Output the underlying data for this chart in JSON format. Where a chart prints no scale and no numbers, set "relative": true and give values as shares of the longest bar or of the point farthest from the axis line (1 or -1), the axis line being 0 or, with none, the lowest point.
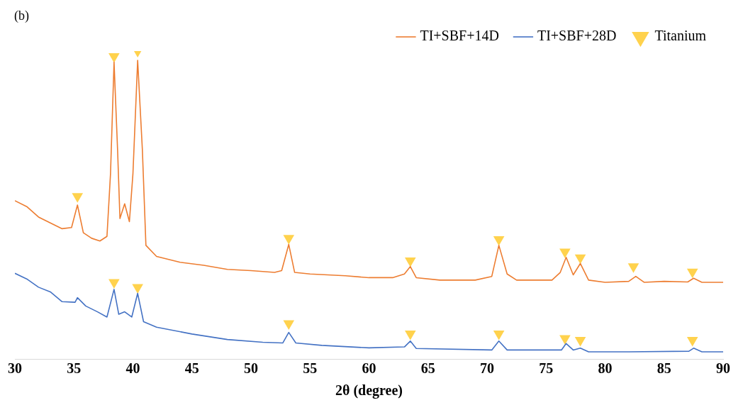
{
  "chart_data": {
    "type": "line",
    "relative": true,
    "xlabel": "2θ (degree)",
    "annotations": [
      "(b)"
    ],
    "xlim": [
      30,
      90
    ],
    "xticks": [
      30,
      35,
      40,
      45,
      50,
      55,
      60,
      65,
      70,
      75,
      80,
      85,
      90
    ],
    "legend": "top right",
    "grid": false,
    "line_style": "solid",
    "series": [
      {
        "name": "TI+SBF+14D",
        "color": "#ed7d31",
        "marker": "none",
        "x": [
          30,
          31,
          32,
          33,
          34,
          34.8,
          35.3,
          35.8,
          36.5,
          37.2,
          37.8,
          38.1,
          38.4,
          38.7,
          38.9,
          39.3,
          39.7,
          40.0,
          40.4,
          40.8,
          41.1,
          42,
          44,
          46,
          48,
          50,
          52,
          52.6,
          53.2,
          53.7,
          55,
          58,
          60,
          62,
          63,
          63.5,
          64,
          66,
          69,
          70.4,
          71,
          71.7,
          72.5,
          75.5,
          76.2,
          76.7,
          77.3,
          77.9,
          78.6,
          80,
          82,
          82.6,
          83.3,
          85,
          87,
          87.5,
          88.2,
          90
        ],
        "values": [
          0.514,
          0.495,
          0.461,
          0.442,
          0.423,
          0.427,
          0.5,
          0.41,
          0.392,
          0.383,
          0.398,
          0.601,
          0.964,
          0.679,
          0.456,
          0.504,
          0.446,
          0.601,
          0.97,
          0.679,
          0.369,
          0.333,
          0.314,
          0.304,
          0.291,
          0.287,
          0.281,
          0.287,
          0.372,
          0.281,
          0.276,
          0.27,
          0.264,
          0.264,
          0.276,
          0.3,
          0.264,
          0.256,
          0.256,
          0.268,
          0.369,
          0.276,
          0.256,
          0.256,
          0.281,
          0.33,
          0.273,
          0.31,
          0.256,
          0.249,
          0.252,
          0.268,
          0.249,
          0.252,
          0.25,
          0.262,
          0.249,
          0.249
        ]
      },
      {
        "name": "TI+SBF+28D",
        "color": "#4472c4",
        "marker": "none",
        "x": [
          30,
          31,
          32,
          33,
          34,
          35.1,
          35.3,
          36,
          37,
          37.8,
          38.4,
          38.8,
          39.3,
          39.9,
          40.4,
          40.9,
          42,
          45,
          48,
          51,
          52.7,
          53.2,
          53.8,
          56,
          60,
          63,
          63.5,
          64,
          70.4,
          71,
          71.7,
          76.3,
          76.7,
          77.3,
          77.9,
          78.6,
          82,
          87.1,
          87.5,
          88.2,
          90
        ],
        "values": [
          0.278,
          0.26,
          0.233,
          0.218,
          0.186,
          0.184,
          0.199,
          0.172,
          0.153,
          0.136,
          0.226,
          0.145,
          0.153,
          0.136,
          0.213,
          0.121,
          0.103,
          0.081,
          0.063,
          0.054,
          0.052,
          0.086,
          0.052,
          0.044,
          0.036,
          0.039,
          0.058,
          0.034,
          0.029,
          0.058,
          0.029,
          0.029,
          0.05,
          0.029,
          0.035,
          0.023,
          0.023,
          0.025,
          0.035,
          0.023,
          0.023
        ]
      },
      {
        "name": "Titanium",
        "color": "#ffd24d",
        "type": "scatter",
        "marker": "triangle",
        "x": [
          35.3,
          38.4,
          40.4,
          53.2,
          63.5,
          71.0,
          76.6,
          77.9,
          82.4,
          87.4,
          38.4,
          40.4,
          53.2,
          63.5,
          71.0,
          76.6,
          77.9,
          87.4
        ],
        "values": [
          0.528,
          0.983,
          1.0,
          0.392,
          0.319,
          0.388,
          0.348,
          0.329,
          0.3,
          0.283,
          0.249,
          0.233,
          0.115,
          0.082,
          0.082,
          0.067,
          0.061,
          0.061
        ]
      }
    ]
  }
}
